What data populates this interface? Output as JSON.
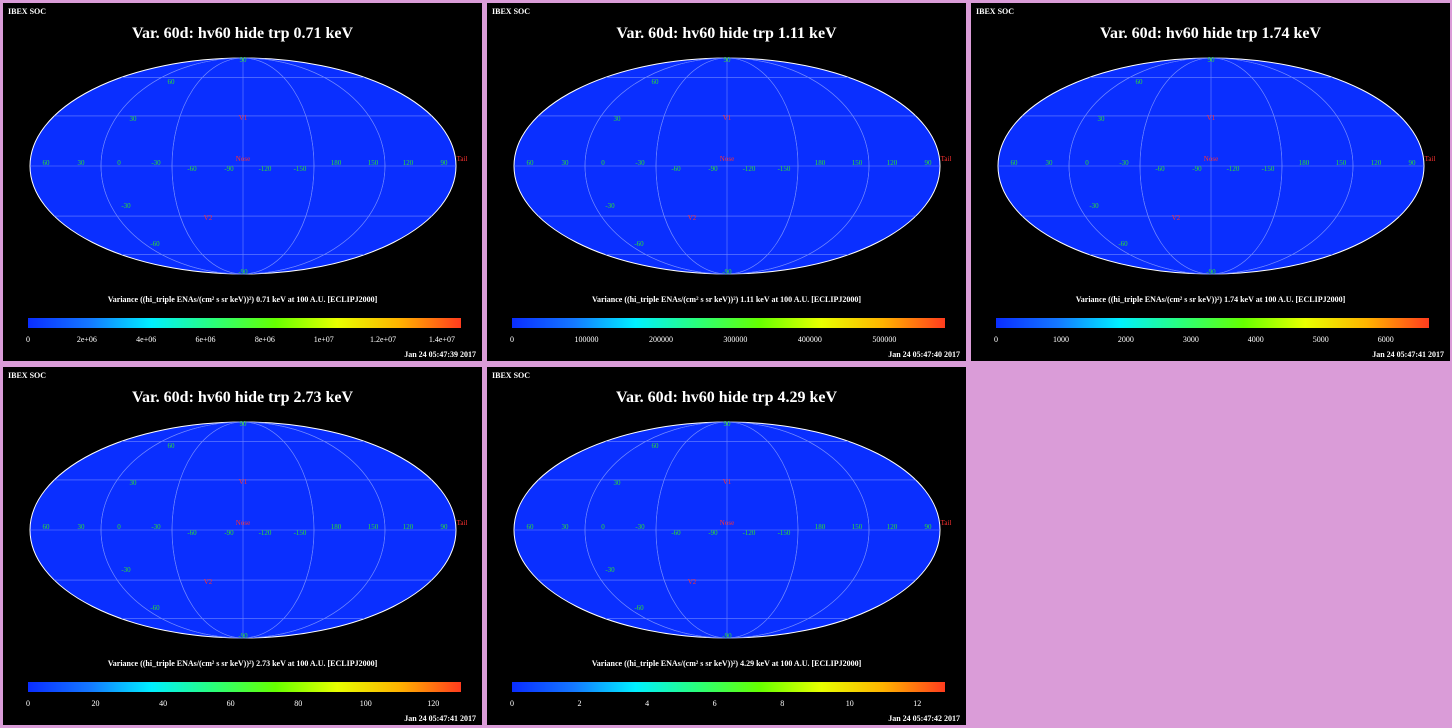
{
  "header_label": "IBEX SOC",
  "colorbar_stops": [
    "#0a2dff",
    "#1478ff",
    "#00f0ff",
    "#2aff7a",
    "#66ff00",
    "#e8ff00",
    "#ffb300",
    "#ff3c1e"
  ],
  "map_color": "#0a2fff",
  "grid_color": "#6f86ff",
  "labels": {
    "lat": [
      "60",
      "30",
      "-30",
      "-60"
    ],
    "lon": [
      "60",
      "30",
      "0",
      "-30",
      "-60",
      "-90",
      "-120",
      "-150",
      "180",
      "150",
      "120",
      "90"
    ],
    "pole_n": "90",
    "pole_s": "-90",
    "v1": "V1",
    "v2": "V2",
    "nose": "Nose",
    "tail": "Tail"
  },
  "panels": [
    {
      "title": "Var. 60d: hv60 hide trp 0.71 keV",
      "colorbar_title": "Variance ((hi_triple ENAs/(cm² s sr keV))²) 0.71 keV at 100 A.U. [ECLIPJ2000]",
      "ticks": [
        "0",
        "2e+06",
        "4e+06",
        "6e+06",
        "8e+06",
        "1e+07",
        "1.2e+07",
        "1.4e+07"
      ],
      "tick_fractions": [
        0,
        0.136,
        0.273,
        0.41,
        0.547,
        0.683,
        0.82,
        0.956
      ],
      "timestamp": "Jan 24 05:47:39 2017"
    },
    {
      "title": "Var. 60d: hv60 hide trp 1.11 keV",
      "colorbar_title": "Variance ((hi_triple ENAs/(cm² s sr keV))²) 1.11 keV at 100 A.U. [ECLIPJ2000]",
      "ticks": [
        "0",
        "100000",
        "200000",
        "300000",
        "400000",
        "500000"
      ],
      "tick_fractions": [
        0,
        0.172,
        0.344,
        0.516,
        0.688,
        0.86
      ],
      "timestamp": "Jan 24 05:47:40 2017"
    },
    {
      "title": "Var. 60d: hv60 hide trp 1.74 keV",
      "colorbar_title": "Variance ((hi_triple ENAs/(cm² s sr keV))²) 1.74 keV at 100 A.U. [ECLIPJ2000]",
      "ticks": [
        "0",
        "1000",
        "2000",
        "3000",
        "4000",
        "5000",
        "6000"
      ],
      "tick_fractions": [
        0,
        0.15,
        0.3,
        0.45,
        0.6,
        0.75,
        0.9
      ],
      "timestamp": "Jan 24 05:47:41 2017"
    },
    {
      "title": "Var. 60d: hv60 hide trp 2.73 keV",
      "colorbar_title": "Variance ((hi_triple ENAs/(cm² s sr keV))²) 2.73 keV at 100 A.U. [ECLIPJ2000]",
      "ticks": [
        "0",
        "20",
        "40",
        "60",
        "80",
        "100",
        "120"
      ],
      "tick_fractions": [
        0,
        0.156,
        0.312,
        0.468,
        0.624,
        0.78,
        0.936
      ],
      "timestamp": "Jan 24 05:47:41 2017"
    },
    {
      "title": "Var. 60d: hv60 hide trp 4.29 keV",
      "colorbar_title": "Variance ((hi_triple ENAs/(cm² s sr keV))²) 4.29 keV at 100 A.U. [ECLIPJ2000]",
      "ticks": [
        "0",
        "2",
        "4",
        "6",
        "8",
        "10",
        "12"
      ],
      "tick_fractions": [
        0,
        0.156,
        0.312,
        0.468,
        0.624,
        0.78,
        0.936
      ],
      "timestamp": "Jan 24 05:47:42 2017"
    }
  ]
}
